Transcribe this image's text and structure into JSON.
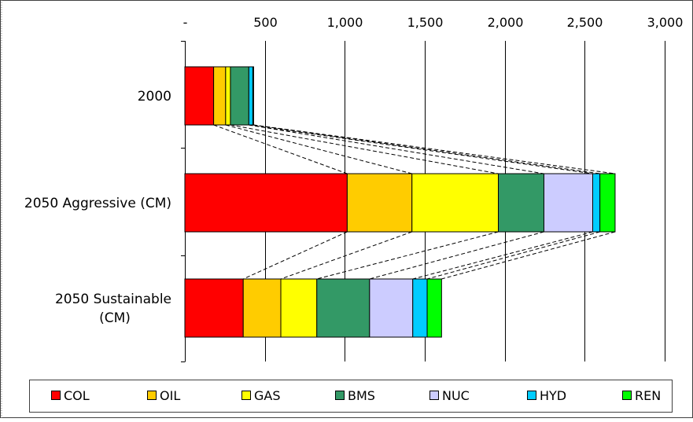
{
  "chart_data": {
    "type": "bar",
    "orientation": "horizontal",
    "stacked": true,
    "categories": [
      "2000",
      "2050 Aggressive (CM)",
      "2050 Sustainable (CM)"
    ],
    "category_display_lines": [
      [
        "2000"
      ],
      [
        "2050 Aggressive (CM)"
      ],
      [
        "2050 Sustainable",
        "(CM)"
      ]
    ],
    "x_ticks": [
      "-",
      "500",
      "1,000",
      "1,500",
      "2,000",
      "2,500",
      "3,000"
    ],
    "x_tick_values": [
      0,
      500,
      1000,
      1500,
      2000,
      2500,
      3000
    ],
    "xlim": [
      0,
      3000
    ],
    "xaxis_position": "top",
    "grid": "vertical",
    "legend_position": "bottom",
    "connector_lines": "dashed",
    "series": [
      {
        "name": "COL",
        "color": "#ff0000",
        "values": [
          180,
          1015,
          365
        ]
      },
      {
        "name": "OIL",
        "color": "#ffcc00",
        "values": [
          75,
          405,
          235
        ]
      },
      {
        "name": "GAS",
        "color": "#ffff00",
        "values": [
          30,
          540,
          225
        ]
      },
      {
        "name": "BMS",
        "color": "#339966",
        "values": [
          115,
          285,
          330
        ]
      },
      {
        "name": "NUC",
        "color": "#ccccff",
        "values": [
          0,
          305,
          270
        ]
      },
      {
        "name": "HYD",
        "color": "#00ccff",
        "values": [
          25,
          45,
          90
        ]
      },
      {
        "name": "REN",
        "color": "#00ff00",
        "values": [
          5,
          95,
          90
        ]
      }
    ]
  }
}
